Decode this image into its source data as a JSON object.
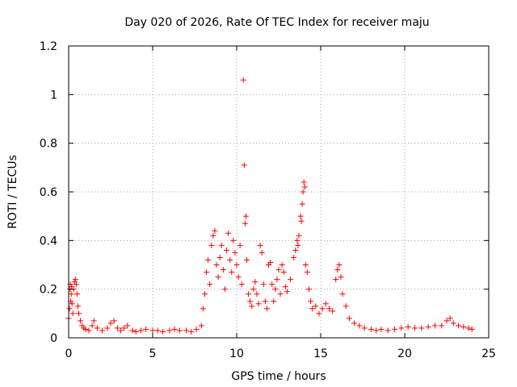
{
  "chart_data": {
    "type": "scatter",
    "title": "Day 020 of 2026, Rate Of TEC Index for receiver maju",
    "xlabel": "GPS time / hours",
    "ylabel": "ROTI / TECUs",
    "xlim": [
      0,
      25
    ],
    "ylim": [
      0,
      1.2
    ],
    "x_ticks": [
      "0",
      "5",
      "10",
      "15",
      "20",
      "25"
    ],
    "y_ticks": [
      "0",
      "0.2",
      "0.4",
      "0.6",
      "0.8",
      "1",
      "1.2"
    ],
    "grid": true,
    "marker": "plus",
    "color": "#ff0000",
    "series": [
      {
        "points": [
          [
            0.0,
            0.08
          ],
          [
            0.05,
            0.12
          ],
          [
            0.08,
            0.2
          ],
          [
            0.1,
            0.22
          ],
          [
            0.12,
            0.15
          ],
          [
            0.15,
            0.18
          ],
          [
            0.18,
            0.21
          ],
          [
            0.2,
            0.14
          ],
          [
            0.25,
            0.1
          ],
          [
            0.3,
            0.2
          ],
          [
            0.35,
            0.23
          ],
          [
            0.4,
            0.24
          ],
          [
            0.45,
            0.22
          ],
          [
            0.5,
            0.18
          ],
          [
            0.55,
            0.13
          ],
          [
            0.6,
            0.1
          ],
          [
            0.7,
            0.07
          ],
          [
            0.8,
            0.05
          ],
          [
            0.9,
            0.04
          ],
          [
            1.0,
            0.035
          ],
          [
            1.2,
            0.03
          ],
          [
            1.4,
            0.05
          ],
          [
            1.5,
            0.07
          ],
          [
            1.7,
            0.04
          ],
          [
            2.0,
            0.03
          ],
          [
            2.3,
            0.04
          ],
          [
            2.5,
            0.06
          ],
          [
            2.7,
            0.07
          ],
          [
            2.9,
            0.04
          ],
          [
            3.1,
            0.03
          ],
          [
            3.3,
            0.04
          ],
          [
            3.5,
            0.05
          ],
          [
            3.8,
            0.03
          ],
          [
            4.0,
            0.025
          ],
          [
            4.3,
            0.03
          ],
          [
            4.6,
            0.035
          ],
          [
            5.0,
            0.03
          ],
          [
            5.3,
            0.03
          ],
          [
            5.6,
            0.025
          ],
          [
            6.0,
            0.03
          ],
          [
            6.3,
            0.035
          ],
          [
            6.6,
            0.03
          ],
          [
            7.0,
            0.03
          ],
          [
            7.3,
            0.025
          ],
          [
            7.6,
            0.035
          ],
          [
            7.9,
            0.05
          ],
          [
            8.0,
            0.12
          ],
          [
            8.1,
            0.18
          ],
          [
            8.2,
            0.27
          ],
          [
            8.3,
            0.32
          ],
          [
            8.4,
            0.22
          ],
          [
            8.5,
            0.38
          ],
          [
            8.6,
            0.42
          ],
          [
            8.7,
            0.44
          ],
          [
            8.8,
            0.3
          ],
          [
            8.9,
            0.25
          ],
          [
            9.0,
            0.33
          ],
          [
            9.1,
            0.38
          ],
          [
            9.2,
            0.28
          ],
          [
            9.3,
            0.2
          ],
          [
            9.4,
            0.36
          ],
          [
            9.5,
            0.43
          ],
          [
            9.6,
            0.32
          ],
          [
            9.7,
            0.27
          ],
          [
            9.8,
            0.4
          ],
          [
            9.9,
            0.35
          ],
          [
            10.0,
            0.3
          ],
          [
            10.1,
            0.25
          ],
          [
            10.2,
            0.38
          ],
          [
            10.3,
            0.22
          ],
          [
            10.4,
            1.06
          ],
          [
            10.45,
            0.71
          ],
          [
            10.5,
            0.47
          ],
          [
            10.55,
            0.5
          ],
          [
            10.6,
            0.32
          ],
          [
            10.7,
            0.18
          ],
          [
            10.8,
            0.15
          ],
          [
            10.9,
            0.13
          ],
          [
            11.0,
            0.2
          ],
          [
            11.1,
            0.23
          ],
          [
            11.2,
            0.18
          ],
          [
            11.3,
            0.14
          ],
          [
            11.4,
            0.38
          ],
          [
            11.5,
            0.35
          ],
          [
            11.6,
            0.22
          ],
          [
            11.7,
            0.15
          ],
          [
            11.8,
            0.12
          ],
          [
            11.9,
            0.3
          ],
          [
            12.0,
            0.31
          ],
          [
            12.1,
            0.22
          ],
          [
            12.2,
            0.15
          ],
          [
            12.3,
            0.2
          ],
          [
            12.4,
            0.24
          ],
          [
            12.5,
            0.28
          ],
          [
            12.6,
            0.18
          ],
          [
            12.7,
            0.3
          ],
          [
            12.8,
            0.27
          ],
          [
            12.9,
            0.21
          ],
          [
            13.0,
            0.19
          ],
          [
            13.2,
            0.24
          ],
          [
            13.4,
            0.33
          ],
          [
            13.5,
            0.36
          ],
          [
            13.6,
            0.4
          ],
          [
            13.65,
            0.38
          ],
          [
            13.7,
            0.42
          ],
          [
            13.8,
            0.5
          ],
          [
            13.85,
            0.48
          ],
          [
            13.9,
            0.55
          ],
          [
            13.95,
            0.6
          ],
          [
            14.0,
            0.64
          ],
          [
            14.05,
            0.62
          ],
          [
            14.1,
            0.3
          ],
          [
            14.2,
            0.27
          ],
          [
            14.3,
            0.2
          ],
          [
            14.4,
            0.15
          ],
          [
            14.5,
            0.12
          ],
          [
            14.7,
            0.13
          ],
          [
            14.9,
            0.1
          ],
          [
            15.1,
            0.12
          ],
          [
            15.3,
            0.14
          ],
          [
            15.5,
            0.12
          ],
          [
            15.7,
            0.11
          ],
          [
            15.9,
            0.24
          ],
          [
            16.0,
            0.28
          ],
          [
            16.1,
            0.3
          ],
          [
            16.2,
            0.25
          ],
          [
            16.3,
            0.18
          ],
          [
            16.5,
            0.13
          ],
          [
            16.7,
            0.08
          ],
          [
            17.0,
            0.06
          ],
          [
            17.3,
            0.05
          ],
          [
            17.6,
            0.04
          ],
          [
            18.0,
            0.035
          ],
          [
            18.3,
            0.03
          ],
          [
            18.6,
            0.035
          ],
          [
            19.0,
            0.03
          ],
          [
            19.4,
            0.035
          ],
          [
            19.8,
            0.04
          ],
          [
            20.2,
            0.045
          ],
          [
            20.6,
            0.04
          ],
          [
            21.0,
            0.04
          ],
          [
            21.4,
            0.045
          ],
          [
            21.8,
            0.05
          ],
          [
            22.2,
            0.05
          ],
          [
            22.5,
            0.07
          ],
          [
            22.7,
            0.08
          ],
          [
            22.9,
            0.06
          ],
          [
            23.2,
            0.05
          ],
          [
            23.5,
            0.045
          ],
          [
            23.8,
            0.04
          ],
          [
            24.0,
            0.035
          ]
        ]
      }
    ]
  }
}
